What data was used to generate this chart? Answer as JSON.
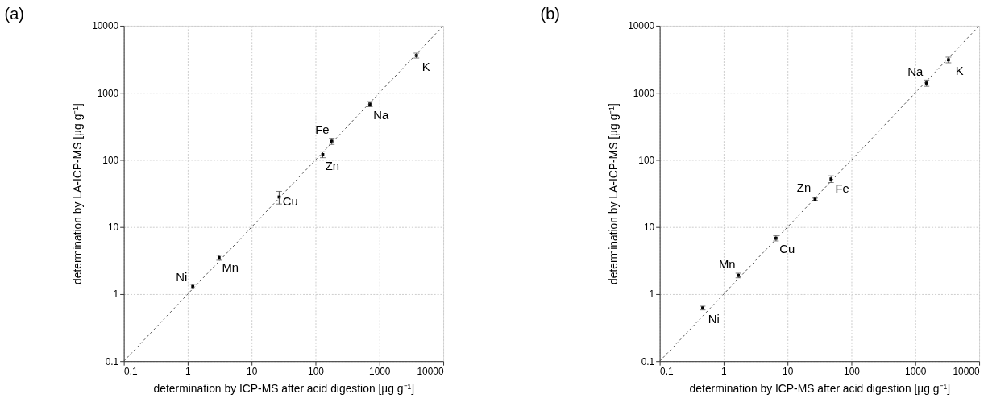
{
  "chart_data": [
    {
      "type": "scatter",
      "title": "(a)",
      "xlabel": "determination by ICP-MS after acid digestion [µg g⁻¹]",
      "ylabel": "determination by LA-ICP-MS [µg g⁻¹]",
      "log": "xy",
      "grid": true,
      "marker": "square",
      "xlim": [
        0.1,
        10000
      ],
      "ylim": [
        0.1,
        10000
      ],
      "xticks": [
        0.1,
        1,
        10,
        100,
        1000,
        10000
      ],
      "yticks": [
        0.1,
        1,
        10,
        100,
        1000,
        10000
      ],
      "series": [
        {
          "color": "#000000",
          "x": [
            3800,
            710,
            180,
            130,
            27,
            3.1,
            1.2
          ],
          "values": [
            3600,
            680,
            190,
            120,
            28,
            3.5,
            1.3
          ],
          "errors": [
            300,
            60,
            20,
            12,
            [
              22,
              34
            ],
            0.3,
            0.1
          ]
        },
        {
          "type": "line",
          "color": "#555555",
          "line_style": "dashed",
          "marker": "none",
          "x": [
            0.1,
            10000
          ],
          "values": [
            0.1,
            10000
          ]
        }
      ],
      "annotations": [
        {
          "text": "K",
          "x": 3800,
          "y": 3600
        },
        {
          "text": "Na",
          "x": 710,
          "y": 680
        },
        {
          "text": "Fe",
          "x": 180,
          "y": 190
        },
        {
          "text": "Zn",
          "x": 130,
          "y": 120
        },
        {
          "text": "Cu",
          "x": 27,
          "y": 28
        },
        {
          "text": "Mn",
          "x": 3.1,
          "y": 3.5
        },
        {
          "text": "Ni",
          "x": 1.2,
          "y": 1.3
        }
      ]
    },
    {
      "type": "scatter",
      "title": "(b)",
      "xlabel": "determination by ICP-MS after acid digestion [µg g⁻¹]",
      "ylabel": "determination by LA-ICP-MS [µg g⁻¹]",
      "log": "xy",
      "grid": true,
      "marker": "square",
      "xlim": [
        0.1,
        10000
      ],
      "ylim": [
        0.1,
        10000
      ],
      "xticks": [
        0.1,
        1,
        10,
        100,
        1000,
        10000
      ],
      "yticks": [
        0.1,
        1,
        10,
        100,
        1000,
        10000
      ],
      "series": [
        {
          "color": "#000000",
          "x": [
            3300,
            1500,
            48,
            27,
            6.6,
            1.7,
            0.47
          ],
          "values": [
            3100,
            1400,
            52,
            26,
            6.8,
            1.9,
            0.62
          ],
          "errors": [
            300,
            150,
            6,
            1,
            0.6,
            0.15,
            0.04
          ]
        },
        {
          "type": "line",
          "color": "#555555",
          "line_style": "dashed",
          "marker": "none",
          "x": [
            0.1,
            10000
          ],
          "values": [
            0.1,
            10000
          ]
        }
      ],
      "annotations": [
        {
          "text": "K",
          "x": 3300,
          "y": 3100
        },
        {
          "text": "Na",
          "x": 1500,
          "y": 1400
        },
        {
          "text": "Fe",
          "x": 48,
          "y": 52
        },
        {
          "text": "Zn",
          "x": 27,
          "y": 26
        },
        {
          "text": "Cu",
          "x": 6.6,
          "y": 6.8
        },
        {
          "text": "Mn",
          "x": 1.7,
          "y": 1.9
        },
        {
          "text": "Ni",
          "x": 0.47,
          "y": 0.62
        }
      ]
    }
  ]
}
